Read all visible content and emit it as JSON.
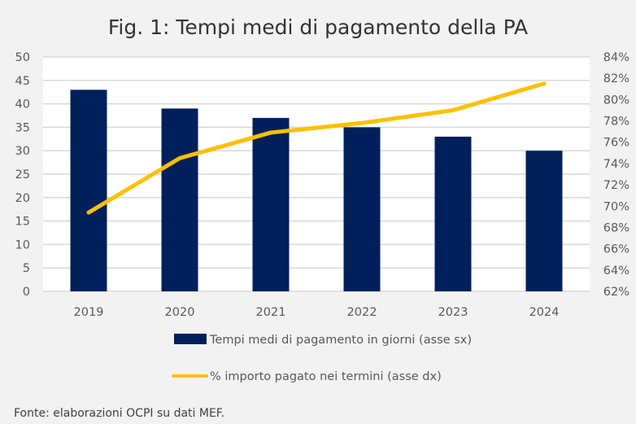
{
  "chart_data": {
    "type": "bar",
    "title": "Fig. 1: Tempi medi di pagamento della PA",
    "categories": [
      "2019",
      "2020",
      "2021",
      "2022",
      "2023",
      "2024"
    ],
    "series": [
      {
        "name": "Tempi medi di pagamento in giorni (asse sx)",
        "type": "bar",
        "axis": "left",
        "color": "#00205b",
        "values": [
          43,
          39,
          37,
          35,
          33,
          30
        ]
      },
      {
        "name": "% importo pagato nei termini (asse dx)",
        "type": "line",
        "axis": "right",
        "color": "#ffc000",
        "values": [
          69.4,
          74.5,
          76.9,
          77.8,
          79.0,
          81.5
        ]
      }
    ],
    "y_left": {
      "min": 0,
      "max": 50,
      "step": 5,
      "ticks": [
        "0",
        "5",
        "10",
        "15",
        "20",
        "25",
        "30",
        "35",
        "40",
        "45",
        "50"
      ]
    },
    "y_right": {
      "min": 62,
      "max": 84,
      "step": 2,
      "ticks": [
        "62%",
        "64%",
        "66%",
        "68%",
        "70%",
        "72%",
        "74%",
        "76%",
        "78%",
        "80%",
        "82%",
        "84%"
      ]
    },
    "xlabel": "",
    "ylabel": "",
    "grid": true,
    "legend_position": "bottom"
  },
  "source": "Fonte: elaborazioni OCPI su dati MEF."
}
